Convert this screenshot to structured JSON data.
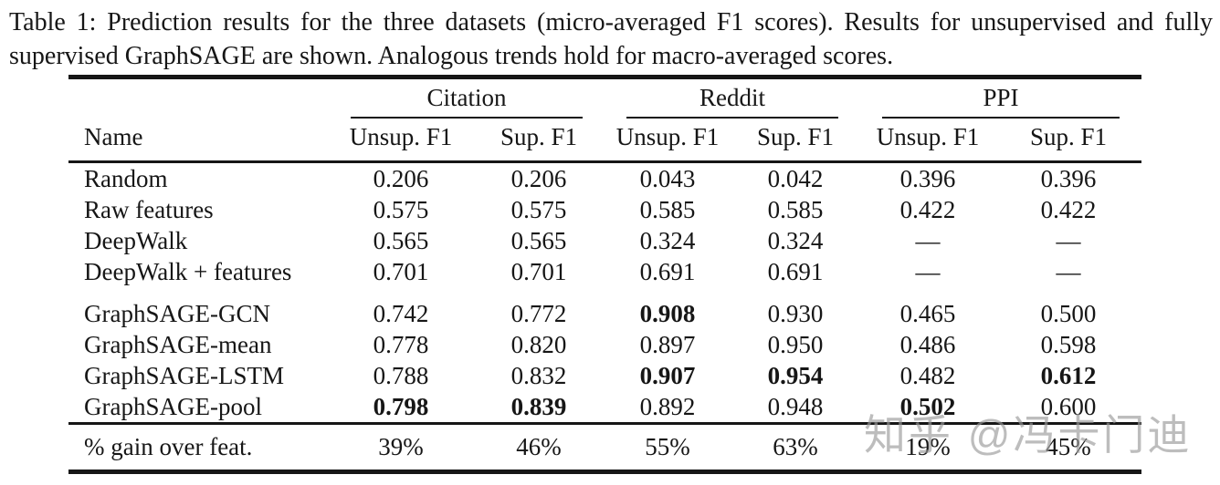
{
  "caption": "Table 1: Prediction results for the three datasets (micro-averaged F1 scores). Results for unsupervised and fully supervised GraphSAGE are shown. Analogous trends hold for macro-averaged scores.",
  "table": {
    "name_header": "Name",
    "groups": [
      {
        "label": "Citation"
      },
      {
        "label": "Reddit"
      },
      {
        "label": "PPI"
      }
    ],
    "subheaders": [
      "Unsup. F1",
      "Sup. F1",
      "Unsup. F1",
      "Sup. F1",
      "Unsup. F1",
      "Sup. F1"
    ],
    "rows": [
      {
        "name": "Random",
        "values": [
          "0.206",
          "0.206",
          "0.043",
          "0.042",
          "0.396",
          "0.396"
        ],
        "bold": []
      },
      {
        "name": "Raw features",
        "values": [
          "0.575",
          "0.575",
          "0.585",
          "0.585",
          "0.422",
          "0.422"
        ],
        "bold": []
      },
      {
        "name": "DeepWalk",
        "values": [
          "0.565",
          "0.565",
          "0.324",
          "0.324",
          "—",
          "—"
        ],
        "bold": []
      },
      {
        "name": "DeepWalk + features",
        "values": [
          "0.701",
          "0.701",
          "0.691",
          "0.691",
          "—",
          "—"
        ],
        "bold": []
      },
      {
        "name": "GraphSAGE-GCN",
        "values": [
          "0.742",
          "0.772",
          "0.908",
          "0.930",
          "0.465",
          "0.500"
        ],
        "bold": [
          2
        ],
        "gap_before": true
      },
      {
        "name": "GraphSAGE-mean",
        "values": [
          "0.778",
          "0.820",
          "0.897",
          "0.950",
          "0.486",
          "0.598"
        ],
        "bold": []
      },
      {
        "name": "GraphSAGE-LSTM",
        "values": [
          "0.788",
          "0.832",
          "0.907",
          "0.954",
          "0.482",
          "0.612"
        ],
        "bold": [
          2,
          3,
          5
        ]
      },
      {
        "name": "GraphSAGE-pool",
        "values": [
          "0.798",
          "0.839",
          "0.892",
          "0.948",
          "0.502",
          "0.600"
        ],
        "bold": [
          0,
          1,
          4
        ]
      }
    ],
    "footer": {
      "name": "% gain over feat.",
      "values": [
        "39%",
        "46%",
        "55%",
        "63%",
        "19%",
        "45%"
      ]
    }
  },
  "watermark": "知乎 @冯卡门迪",
  "colors": {
    "text": "#161616",
    "rule": "#161616",
    "watermark_gray": "#999999",
    "background": "#ffffff"
  }
}
